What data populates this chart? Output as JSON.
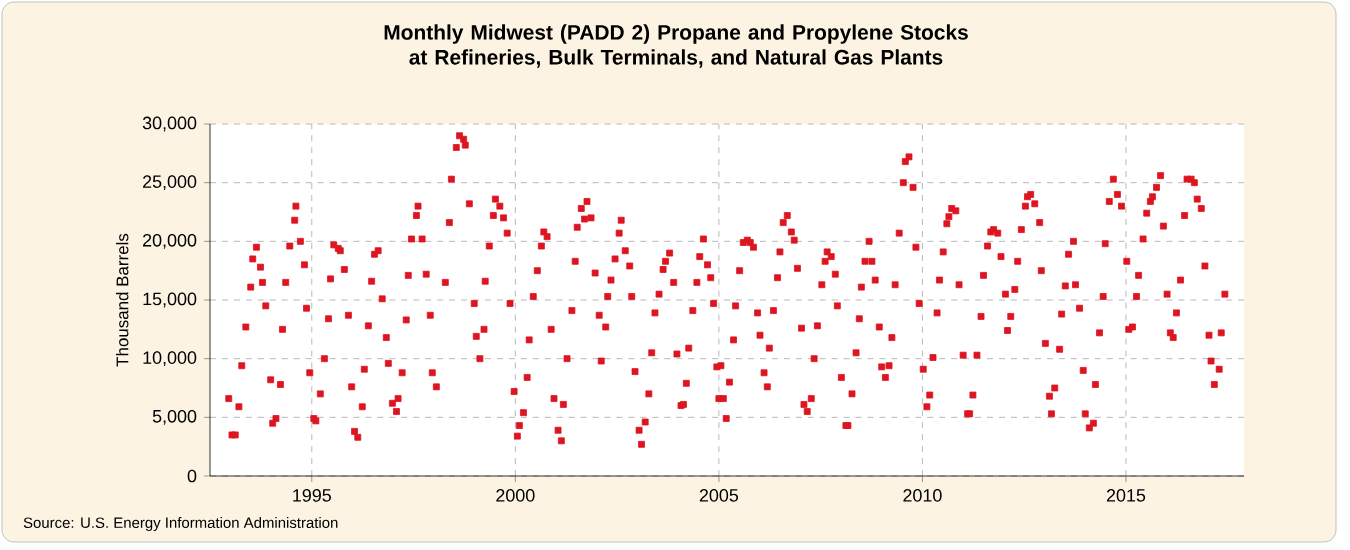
{
  "chart_data": {
    "type": "scatter",
    "title": "Monthly Midwest (PADD 2) Propane and Propylene Stocks at Refineries, Bulk Terminals, and Natural Gas Plants",
    "ylabel": "Thousand Barrels",
    "annotations": [
      "Source: U.S. Energy Information Administration"
    ],
    "color": "#dd1520",
    "marker": "square",
    "grid": true,
    "xlim": [
      1992.5,
      2017.9
    ],
    "xticks": [
      1995,
      2000,
      2005,
      2010,
      2015
    ],
    "ylim": [
      0,
      30000
    ],
    "yticks": [
      0,
      {
        "value": 5000,
        "label": "5,000"
      },
      {
        "value": 10000,
        "label": "10,000"
      },
      {
        "value": 15000,
        "label": "15,000"
      },
      {
        "value": 20000,
        "label": "20,000"
      },
      {
        "value": 25000,
        "label": "25,000"
      },
      {
        "value": 30000,
        "label": "30,000"
      }
    ],
    "x": [
      1992.96,
      1993.04,
      1993.12,
      1993.21,
      1993.28,
      1993.38,
      1993.5,
      1993.55,
      1993.64,
      1993.74,
      1993.79,
      1993.87,
      1993.99,
      1994.04,
      1994.12,
      1994.23,
      1994.28,
      1994.36,
      1994.46,
      1994.58,
      1994.61,
      1994.72,
      1994.82,
      1994.87,
      1994.95,
      1995.05,
      1995.1,
      1995.21,
      1995.31,
      1995.41,
      1995.46,
      1995.54,
      1995.65,
      1995.7,
      1995.8,
      1995.9,
      1995.98,
      1996.05,
      1996.13,
      1996.24,
      1996.29,
      1996.39,
      1996.47,
      1996.54,
      1996.63,
      1996.73,
      1996.83,
      1996.88,
      1996.98,
      1997.08,
      1997.12,
      1997.22,
      1997.32,
      1997.37,
      1997.45,
      1997.57,
      1997.61,
      1997.71,
      1997.81,
      1997.91,
      1997.96,
      1998.06,
      1998.28,
      1998.38,
      1998.43,
      1998.55,
      1998.63,
      1998.73,
      1998.77,
      1998.87,
      1998.99,
      1999.04,
      1999.13,
      1999.23,
      1999.26,
      1999.36,
      1999.46,
      1999.51,
      1999.62,
      1999.71,
      1999.8,
      1999.87,
      1999.97,
      2000.05,
      2000.1,
      2000.2,
      2000.29,
      2000.34,
      2000.44,
      2000.54,
      2000.64,
      2000.7,
      2000.78,
      2000.88,
      2000.95,
      2001.05,
      2001.13,
      2001.18,
      2001.27,
      2001.39,
      2001.47,
      2001.52,
      2001.62,
      2001.7,
      2001.76,
      2001.86,
      2001.96,
      2002.06,
      2002.11,
      2002.22,
      2002.27,
      2002.35,
      2002.45,
      2002.55,
      2002.6,
      2002.7,
      2002.81,
      2002.86,
      2002.94,
      2003.04,
      2003.1,
      2003.19,
      2003.28,
      2003.35,
      2003.43,
      2003.53,
      2003.63,
      2003.69,
      2003.79,
      2003.89,
      2003.97,
      2004.07,
      2004.13,
      2004.2,
      2004.26,
      2004.36,
      2004.46,
      2004.53,
      2004.62,
      2004.72,
      2004.8,
      2004.87,
      2004.95,
      2005.0,
      2005.05,
      2005.11,
      2005.18,
      2005.26,
      2005.36,
      2005.41,
      2005.51,
      2005.6,
      2005.7,
      2005.77,
      2005.85,
      2005.95,
      2006.01,
      2006.11,
      2006.19,
      2006.24,
      2006.34,
      2006.44,
      2006.5,
      2006.58,
      2006.68,
      2006.78,
      2006.85,
      2006.93,
      2007.03,
      2007.09,
      2007.17,
      2007.27,
      2007.34,
      2007.42,
      2007.53,
      2007.61,
      2007.66,
      2007.76,
      2007.86,
      2007.91,
      2008.01,
      2008.12,
      2008.17,
      2008.27,
      2008.37,
      2008.45,
      2008.5,
      2008.59,
      2008.69,
      2008.76,
      2008.84,
      2008.94,
      2009.0,
      2009.09,
      2009.18,
      2009.25,
      2009.33,
      2009.43,
      2009.53,
      2009.58,
      2009.67,
      2009.77,
      2009.84,
      2009.92,
      2010.02,
      2010.11,
      2010.18,
      2010.26,
      2010.36,
      2010.42,
      2010.51,
      2010.6,
      2010.65,
      2010.72,
      2010.82,
      2010.9,
      2011.0,
      2011.11,
      2011.16,
      2011.24,
      2011.34,
      2011.44,
      2011.5,
      2011.6,
      2011.68,
      2011.75,
      2011.85,
      2011.93,
      2012.04,
      2012.09,
      2012.17,
      2012.27,
      2012.34,
      2012.43,
      2012.53,
      2012.58,
      2012.66,
      2012.76,
      2012.88,
      2012.92,
      2013.02,
      2013.12,
      2013.17,
      2013.25,
      2013.37,
      2013.42,
      2013.51,
      2013.59,
      2013.71,
      2013.76,
      2013.86,
      2013.95,
      2014.0,
      2014.1,
      2014.2,
      2014.25,
      2014.35,
      2014.44,
      2014.49,
      2014.59,
      2014.69,
      2014.79,
      2014.89,
      2015.02,
      2015.07,
      2015.16,
      2015.26,
      2015.31,
      2015.42,
      2015.51,
      2015.6,
      2015.65,
      2015.75,
      2015.85,
      2015.92,
      2016.01,
      2016.09,
      2016.16,
      2016.24,
      2016.34,
      2016.44,
      2016.5,
      2016.6,
      2016.68,
      2016.75,
      2016.85,
      2016.94,
      2017.04,
      2017.09,
      2017.17,
      2017.29,
      2017.34,
      2017.43
    ],
    "values": [
      6600,
      3500,
      3500,
      5900,
      9400,
      12700,
      16100,
      18500,
      19500,
      17800,
      16500,
      14500,
      8200,
      4500,
      4900,
      7800,
      12500,
      16500,
      19600,
      21800,
      23000,
      20000,
      18000,
      14300,
      8800,
      4900,
      4700,
      7000,
      10000,
      13400,
      16800,
      19700,
      19400,
      19200,
      17600,
      13700,
      7600,
      3800,
      3300,
      5900,
      9100,
      12800,
      16600,
      18900,
      19200,
      15100,
      11800,
      9600,
      6200,
      5500,
      6600,
      8800,
      13300,
      17100,
      20200,
      22200,
      23000,
      20200,
      17200,
      13700,
      8800,
      7600,
      16500,
      21600,
      25300,
      28000,
      29000,
      28700,
      28200,
      23200,
      14700,
      11900,
      10000,
      12500,
      16600,
      19600,
      22200,
      23600,
      23000,
      22000,
      20700,
      14700,
      7200,
      3400,
      4300,
      5400,
      8400,
      11600,
      15300,
      17500,
      19600,
      20800,
      20400,
      12500,
      6600,
      3900,
      3000,
      6100,
      10000,
      14100,
      18300,
      21200,
      22800,
      21900,
      23400,
      22000,
      17300,
      13700,
      9800,
      12700,
      15300,
      16700,
      18500,
      20700,
      21800,
      19200,
      17900,
      15300,
      8900,
      3900,
      2700,
      4600,
      7000,
      10500,
      13900,
      15500,
      17600,
      18300,
      19000,
      16500,
      10400,
      6000,
      6100,
      7900,
      10900,
      14100,
      16500,
      18700,
      20200,
      18000,
      16900,
      14700,
      9300,
      6600,
      9400,
      6600,
      4900,
      8000,
      11600,
      14500,
      17500,
      19900,
      20100,
      19900,
      19500,
      13900,
      12000,
      8800,
      7600,
      10900,
      14100,
      16900,
      19100,
      21600,
      22200,
      20800,
      20100,
      17700,
      12600,
      6100,
      5500,
      6600,
      10000,
      12800,
      16300,
      18300,
      19100,
      18700,
      17200,
      14500,
      8400,
      4300,
      4300,
      7000,
      10500,
      13400,
      16100,
      18300,
      20000,
      18300,
      16700,
      12700,
      9300,
      8400,
      9400,
      11800,
      16300,
      20700,
      25000,
      26800,
      27200,
      24600,
      19500,
      14700,
      9100,
      5900,
      6900,
      10100,
      13900,
      16700,
      19100,
      21500,
      22100,
      22800,
      22600,
      16300,
      10300,
      5300,
      5300,
      6900,
      10300,
      13600,
      17100,
      19600,
      20800,
      21000,
      20700,
      18700,
      15500,
      12400,
      13600,
      15900,
      18300,
      21000,
      23000,
      23800,
      24000,
      23200,
      21600,
      17500,
      11300,
      6800,
      5300,
      7500,
      10800,
      13800,
      16200,
      18900,
      20000,
      16300,
      14300,
      9000,
      5300,
      4100,
      4500,
      7800,
      12200,
      15300,
      19800,
      23400,
      25300,
      24000,
      23000,
      18300,
      12500,
      12700,
      15300,
      17100,
      20200,
      22400,
      23400,
      23800,
      24600,
      25600,
      21300,
      15500,
      12200,
      11800,
      13900,
      16700,
      22200,
      25300,
      25300,
      25000,
      23600,
      22800,
      17900,
      12000,
      9800,
      7800,
      9100,
      12200,
      15500
    ]
  }
}
